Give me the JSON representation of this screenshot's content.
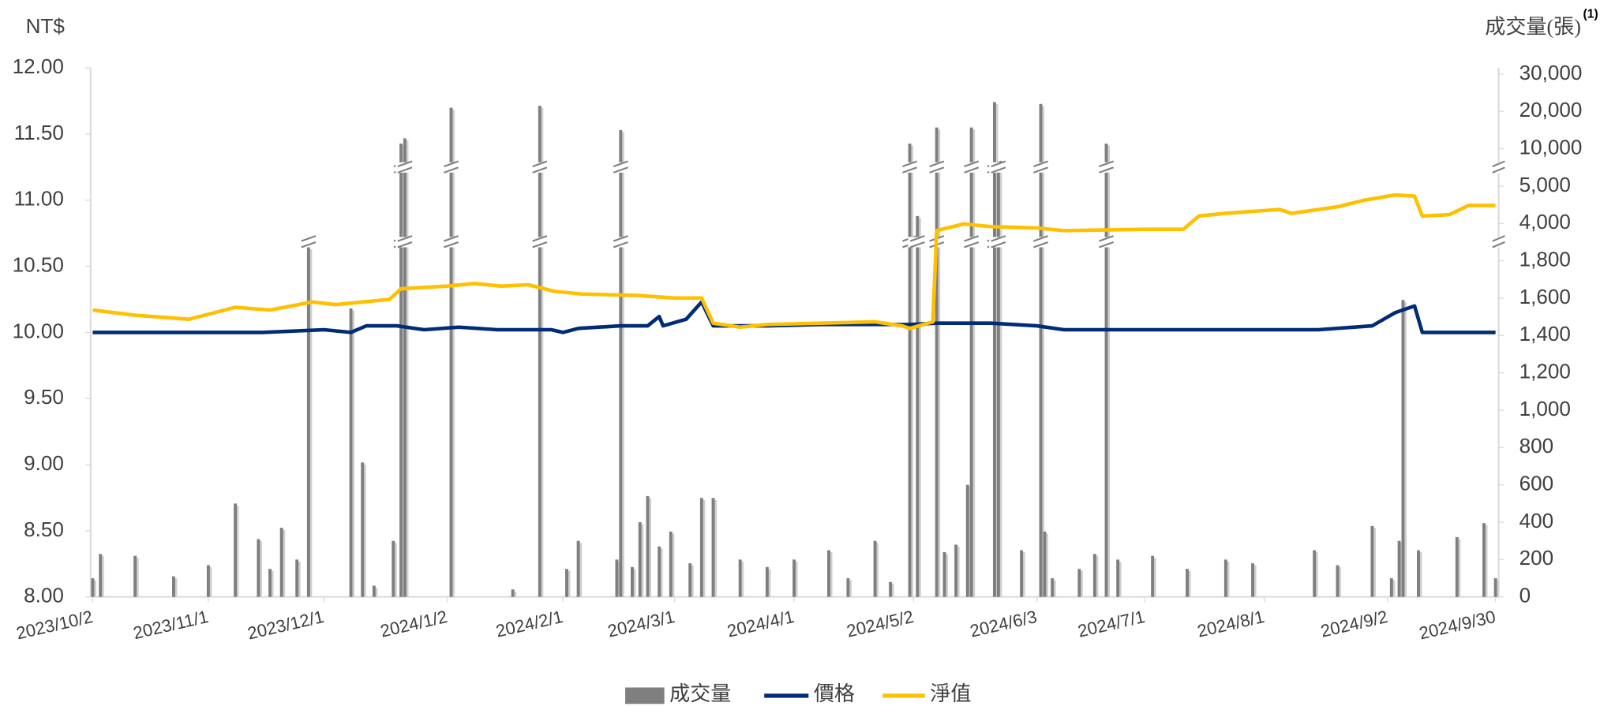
{
  "chart_data": {
    "type": "combo",
    "y_label": "NT$",
    "y2_label": "成交量(張)",
    "y2_label_note": "(1)",
    "xlim": [
      "2023/10/2",
      "2024/9/30"
    ],
    "xticks": [
      "2023/10/2",
      "2023/11/1",
      "2023/12/1",
      "2024/1/2",
      "2024/2/1",
      "2024/3/1",
      "2024/4/1",
      "2024/5/2",
      "2024/6/3",
      "2024/7/1",
      "2024/8/1",
      "2024/9/2",
      "2024/9/30"
    ],
    "ylim": [
      8,
      12
    ],
    "yticks": [
      {
        "value": 8,
        "label": "8.00"
      },
      {
        "value": 8.5,
        "label": "8.50"
      },
      {
        "value": 9,
        "label": "9.00"
      },
      {
        "value": 9.5,
        "label": "9.50"
      },
      {
        "value": 10,
        "label": "10.00"
      },
      {
        "value": 10.5,
        "label": "10.50"
      },
      {
        "value": 11,
        "label": "11.00"
      },
      {
        "value": 11.5,
        "label": "11.50"
      },
      {
        "value": 12,
        "label": "12.00"
      }
    ],
    "y2lim": [
      0,
      30000
    ],
    "y2ticks": [
      0,
      200,
      400,
      600,
      800,
      {
        "value": 1000,
        "label": "1,000"
      },
      {
        "value": 1200,
        "label": "1,200"
      },
      {
        "value": 1400,
        "label": "1,400"
      },
      {
        "value": 1600,
        "label": "1,600"
      },
      {
        "value": 1800,
        "label": "1,800"
      },
      {
        "value": 4000,
        "label": "4,000"
      },
      {
        "value": 5000,
        "label": "5,000"
      },
      {
        "value": 10000,
        "label": "10,000"
      },
      {
        "value": 20000,
        "label": "20,000"
      },
      {
        "value": 30000,
        "label": "30,000"
      }
    ],
    "series": [
      {
        "name": "成交量",
        "type": "bar",
        "axis": "y2",
        "color": "#7f7f7f",
        "x": [
          "2023/10/2",
          "2023/10/4",
          "2023/10/13",
          "2023/10/23",
          "2023/11/1",
          "2023/11/8",
          "2023/11/14",
          "2023/11/17",
          "2023/11/20",
          "2023/11/24",
          "2023/11/27",
          "2023/12/8",
          "2023/12/11",
          "2023/12/14",
          "2023/12/19",
          "2023/12/21",
          "2023/12/22",
          "2024/1/3",
          "2024/1/19",
          "2024/1/26",
          "2024/2/2",
          "2024/2/5",
          "2024/2/15",
          "2024/2/16",
          "2024/2/19",
          "2024/2/21",
          "2024/2/23",
          "2024/2/26",
          "2024/2/29",
          "2024/3/5",
          "2024/3/8",
          "2024/3/11",
          "2024/3/18",
          "2024/3/25",
          "2024/4/1",
          "2024/4/10",
          "2024/4/15",
          "2024/4/22",
          "2024/4/26",
          "2024/5/1",
          "2024/5/3",
          "2024/5/8",
          "2024/5/10",
          "2024/5/13",
          "2024/5/16",
          "2024/5/17",
          "2024/5/23",
          "2024/5/24",
          "2024/5/30",
          "2024/6/4",
          "2024/6/5",
          "2024/6/7",
          "2024/6/14",
          "2024/6/18",
          "2024/6/21",
          "2024/6/24",
          "2024/7/3",
          "2024/7/12",
          "2024/7/22",
          "2024/7/29",
          "2024/8/14",
          "2024/8/20",
          "2024/8/29",
          "2024/9/3",
          "2024/9/5",
          "2024/9/6",
          "2024/9/10",
          "2024/9/20",
          "2024/9/27",
          "2024/9/30"
        ],
        "values": [
          100,
          230,
          220,
          110,
          170,
          500,
          310,
          150,
          370,
          200,
          2600,
          1545,
          720,
          60,
          300,
          11400,
          12800,
          21000,
          40,
          21500,
          150,
          300,
          200,
          15000,
          160,
          400,
          540,
          270,
          350,
          180,
          530,
          530,
          200,
          160,
          200,
          250,
          100,
          300,
          80,
          11400,
          4200,
          15700,
          240,
          280,
          600,
          15700,
          22500,
          8000,
          250,
          22000,
          350,
          100,
          150,
          230,
          11400,
          200,
          220,
          150,
          200,
          180,
          250,
          170,
          380,
          100,
          300,
          1590,
          250,
          320,
          395,
          100
        ]
      },
      {
        "name": "價格",
        "type": "line",
        "color": "#002c77",
        "x": [
          "2023/10/2",
          "2023/10/16",
          "2023/11/1",
          "2023/11/15",
          "2023/12/1",
          "2023/12/8",
          "2023/12/12",
          "2023/12/20",
          "2023/12/27",
          "2024/1/5",
          "2024/1/15",
          "2024/1/29",
          "2024/2/1",
          "2024/2/5",
          "2024/2/16",
          "2024/2/23",
          "2024/2/26",
          "2024/2/27",
          "2024/3/4",
          "2024/3/8",
          "2024/3/11",
          "2024/3/25",
          "2024/4/8",
          "2024/4/22",
          "2024/5/1",
          "2024/5/8",
          "2024/5/15",
          "2024/5/22",
          "2024/6/3",
          "2024/6/10",
          "2024/7/1",
          "2024/7/15",
          "2024/8/1",
          "2024/8/15",
          "2024/8/29",
          "2024/9/4",
          "2024/9/9",
          "2024/9/11",
          "2024/9/30"
        ],
        "values": [
          10.0,
          10.0,
          10.0,
          10.0,
          10.02,
          10.0,
          10.05,
          10.05,
          10.02,
          10.04,
          10.02,
          10.02,
          10.0,
          10.03,
          10.05,
          10.05,
          10.12,
          10.05,
          10.1,
          10.23,
          10.05,
          10.05,
          10.06,
          10.06,
          10.06,
          10.07,
          10.07,
          10.07,
          10.05,
          10.02,
          10.02,
          10.02,
          10.02,
          10.02,
          10.05,
          10.15,
          10.2,
          10.0,
          10.0
        ]
      },
      {
        "name": "淨值",
        "type": "line",
        "color": "#ffc000",
        "x": [
          "2023/10/2",
          "2023/10/13",
          "2023/10/27",
          "2023/11/8",
          "2023/11/17",
          "2023/11/28",
          "2023/12/4",
          "2023/12/18",
          "2023/12/21",
          "2024/1/2",
          "2024/1/9",
          "2024/1/16",
          "2024/1/23",
          "2024/1/30",
          "2024/2/6",
          "2024/2/20",
          "2024/3/1",
          "2024/3/8",
          "2024/3/11",
          "2024/3/18",
          "2024/3/25",
          "2024/4/8",
          "2024/4/22",
          "2024/4/29",
          "2024/5/1",
          "2024/5/7",
          "2024/5/8",
          "2024/5/15",
          "2024/5/22",
          "2024/6/3",
          "2024/6/10",
          "2024/7/1",
          "2024/7/11",
          "2024/7/15",
          "2024/7/22",
          "2024/8/5",
          "2024/8/8",
          "2024/8/20",
          "2024/8/27",
          "2024/9/4",
          "2024/9/9",
          "2024/9/11",
          "2024/9/18",
          "2024/9/23",
          "2024/9/30"
        ],
        "values": [
          10.17,
          10.13,
          10.1,
          10.19,
          10.17,
          10.23,
          10.21,
          10.25,
          10.33,
          10.35,
          10.37,
          10.35,
          10.36,
          10.31,
          10.29,
          10.28,
          10.26,
          10.26,
          10.07,
          10.04,
          10.06,
          10.07,
          10.08,
          10.05,
          10.03,
          10.08,
          10.77,
          10.82,
          10.8,
          10.79,
          10.77,
          10.78,
          10.78,
          10.88,
          10.9,
          10.93,
          10.9,
          10.95,
          11.0,
          11.04,
          11.03,
          10.88,
          10.89,
          10.96,
          10.96
        ]
      }
    ]
  }
}
